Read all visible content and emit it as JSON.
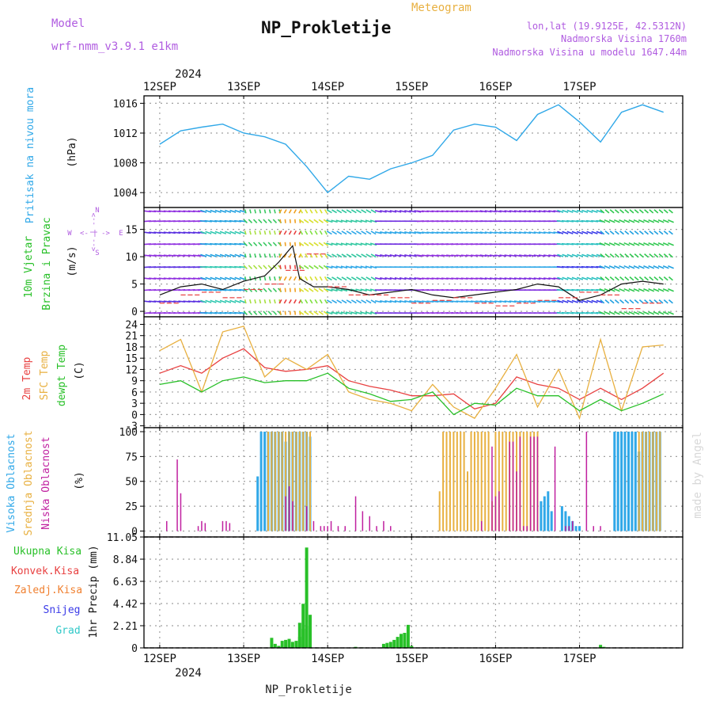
{
  "header": {
    "model_label": "Model",
    "model_name": "wrf-nmm_v3.9.1 e1km",
    "title": "NP_Prokletije",
    "subtitle": "Meteogram",
    "coords": "lon,lat (19.9125E, 42.5312N)",
    "altitude": "Nadmorska Visina 1760m",
    "model_altitude": "Nadmorska Visina u modelu 1647.44m",
    "footer": "NP_Prokletije",
    "watermark": "made by Angel",
    "year": "2024"
  },
  "colors": {
    "purple": "#b05ce0",
    "orange": "#e8b040",
    "cyan": "#30a8e8",
    "green": "#28c028",
    "red": "#e84040",
    "magenta": "#c020a0",
    "blue": "#3a3ae8",
    "teal": "#30c8c8"
  },
  "chart_data": [
    {
      "type": "line",
      "name": "pressure",
      "ylabel_color_label": "Pritisak na nivou mora",
      "unit": "(hPa)",
      "xticks": [
        "12SEP",
        "13SEP",
        "14SEP",
        "15SEP",
        "16SEP",
        "17SEP"
      ],
      "ylim": [
        1002,
        1017
      ],
      "yticks": [
        1004,
        1008,
        1012,
        1016
      ],
      "grid": true,
      "series": [
        {
          "x": [
            0,
            6,
            12,
            18,
            24,
            30,
            36,
            42,
            48,
            54,
            60,
            66,
            72,
            78,
            84,
            90,
            96,
            102,
            108,
            114,
            120,
            126,
            132,
            138,
            144
          ],
          "values": [
            1010.5,
            1012.3,
            1012.8,
            1013.2,
            1012.0,
            1011.5,
            1010.5,
            1007.5,
            1004.0,
            1006.2,
            1005.8,
            1007.2,
            1008.0,
            1009.0,
            1012.4,
            1013.2,
            1012.8,
            1011.0,
            1014.5,
            1015.8,
            1013.5,
            1010.8,
            1014.8,
            1015.8,
            1014.8
          ]
        }
      ]
    },
    {
      "type": "line",
      "name": "wind",
      "label1": "10m Vjetar",
      "label2": "Brzina i Pravac",
      "unit": "(m/s)",
      "compass": {
        "n": "N",
        "s": "S",
        "e": "E",
        "w": "W",
        "arrow_h": "<- | ->",
        "arrow_v": "<-- | -->"
      },
      "ylim": [
        -1,
        19
      ],
      "yticks": [
        0,
        5,
        10,
        15
      ],
      "grid": true,
      "series": [
        {
          "name": "speed",
          "x": [
            0,
            6,
            12,
            18,
            24,
            30,
            34,
            38,
            40,
            44,
            48,
            54,
            60,
            66,
            72,
            78,
            84,
            90,
            96,
            102,
            108,
            114,
            120,
            126,
            132,
            138,
            144
          ],
          "values": [
            3.0,
            4.5,
            5.0,
            4.0,
            5.5,
            6.5,
            9.0,
            12.0,
            6.0,
            4.5,
            4.5,
            4.0,
            3.0,
            3.5,
            4.0,
            3.0,
            2.5,
            3.0,
            3.5,
            4.0,
            5.0,
            4.5,
            2.0,
            3.0,
            5.0,
            5.5,
            5.0
          ]
        }
      ]
    },
    {
      "type": "line",
      "name": "temperature",
      "label1": "2m Temp",
      "label2": "SFC Temp",
      "label3": "dewpt Temp",
      "unit": "(C)",
      "ylim": [
        -3.5,
        26
      ],
      "yticks": [
        -3,
        0,
        3,
        6,
        9,
        12,
        15,
        18,
        21,
        24
      ],
      "grid": true,
      "series": [
        {
          "name": "2m Temp",
          "color": "red",
          "x": [
            0,
            6,
            12,
            18,
            24,
            30,
            36,
            42,
            48,
            54,
            60,
            66,
            72,
            78,
            84,
            90,
            96,
            102,
            108,
            114,
            120,
            126,
            132,
            138,
            144
          ],
          "values": [
            11.0,
            13.0,
            11.0,
            15.0,
            17.5,
            12.5,
            11.5,
            12.0,
            13.0,
            9.0,
            7.5,
            6.5,
            5.0,
            5.0,
            5.5,
            1.5,
            3.0,
            10.0,
            8.0,
            7.0,
            4.0,
            7.0,
            4.0,
            7.0,
            11.0
          ]
        },
        {
          "name": "SFC Temp",
          "color": "orange",
          "x": [
            0,
            6,
            12,
            18,
            24,
            30,
            36,
            42,
            48,
            54,
            60,
            66,
            72,
            78,
            84,
            90,
            96,
            102,
            108,
            114,
            120,
            126,
            132,
            138,
            144
          ],
          "values": [
            17.0,
            20.0,
            6.0,
            22.0,
            23.5,
            10.0,
            15.0,
            12.0,
            16.0,
            6.0,
            4.0,
            3.0,
            1.0,
            8.0,
            2.0,
            -1.0,
            7.0,
            16.0,
            2.0,
            12.0,
            -1.0,
            20.0,
            1.0,
            18.0,
            18.5
          ]
        },
        {
          "name": "dewpt Temp",
          "color": "green",
          "x": [
            0,
            6,
            12,
            18,
            24,
            30,
            36,
            42,
            48,
            54,
            60,
            66,
            72,
            78,
            84,
            90,
            96,
            102,
            108,
            114,
            120,
            126,
            132,
            138,
            144
          ],
          "values": [
            8.0,
            9.0,
            6.0,
            9.0,
            10.0,
            8.5,
            9.0,
            9.0,
            11.0,
            7.0,
            5.5,
            3.5,
            4.0,
            6.0,
            0.0,
            3.0,
            2.5,
            7.0,
            5.0,
            5.0,
            1.0,
            4.0,
            1.0,
            3.0,
            5.5
          ]
        }
      ]
    },
    {
      "type": "bar",
      "name": "clouds",
      "label1": "Visoka Oblacnost",
      "label2": "Srednja Oblacnost",
      "label3": "Niska Oblacnost",
      "unit": "(%)",
      "ylim": [
        0,
        100
      ],
      "yticks": [
        0,
        25,
        50,
        75,
        100
      ],
      "grid": true,
      "series": [
        {
          "name": "Visoka Oblacnost",
          "color": "cyan",
          "x": [
            28,
            29,
            30,
            31,
            32,
            33,
            34,
            35,
            36,
            37,
            38,
            39,
            40,
            41,
            42,
            43,
            109,
            110,
            111,
            112,
            115,
            116,
            117,
            118,
            119,
            120,
            130,
            131,
            132,
            133,
            134,
            135,
            136,
            137,
            138,
            139,
            140,
            141,
            142,
            143
          ],
          "values": [
            55,
            100,
            100,
            100,
            100,
            100,
            100,
            100,
            90,
            100,
            100,
            100,
            100,
            100,
            100,
            95,
            30,
            35,
            40,
            20,
            25,
            20,
            15,
            10,
            5,
            5,
            100,
            100,
            100,
            100,
            100,
            100,
            100,
            80,
            100,
            100,
            100,
            100,
            100,
            100
          ]
        },
        {
          "name": "Srednja Oblacnost",
          "color": "orange",
          "x": [
            31,
            32,
            33,
            34,
            35,
            36,
            37,
            38,
            39,
            40,
            41,
            42,
            43,
            80,
            81,
            82,
            83,
            84,
            85,
            86,
            87,
            88,
            89,
            90,
            91,
            92,
            93,
            94,
            95,
            96,
            97,
            98,
            99,
            100,
            101,
            102,
            103,
            104,
            105,
            106,
            107,
            108,
            137,
            138,
            139,
            140,
            141,
            142,
            143
          ],
          "values": [
            100,
            100,
            100,
            100,
            100,
            100,
            100,
            100,
            100,
            100,
            100,
            100,
            100,
            40,
            100,
            100,
            100,
            100,
            100,
            100,
            100,
            60,
            100,
            100,
            100,
            100,
            100,
            100,
            30,
            100,
            100,
            100,
            100,
            100,
            100,
            100,
            100,
            100,
            100,
            100,
            100,
            100,
            100,
            100,
            100,
            100,
            100,
            100,
            100
          ]
        },
        {
          "name": "Niska Oblacnost",
          "color": "magenta",
          "x": [
            2,
            5,
            6,
            11,
            12,
            13,
            18,
            19,
            20,
            36,
            37,
            38,
            42,
            44,
            46,
            47,
            48,
            49,
            51,
            53,
            56,
            58,
            60,
            62,
            64,
            66,
            92,
            95,
            96,
            97,
            100,
            101,
            102,
            103,
            104,
            105,
            106,
            107,
            108,
            113,
            116,
            117,
            118,
            122,
            124,
            126
          ],
          "values": [
            10,
            72,
            38,
            5,
            10,
            8,
            10,
            10,
            8,
            35,
            45,
            30,
            25,
            10,
            5,
            5,
            5,
            10,
            5,
            5,
            35,
            20,
            15,
            5,
            10,
            5,
            10,
            85,
            35,
            40,
            90,
            90,
            60,
            95,
            5,
            5,
            95,
            95,
            95,
            85,
            5,
            5,
            10,
            100,
            5,
            5
          ]
        }
      ]
    },
    {
      "type": "bar",
      "name": "precipitation",
      "labels": [
        "Ukupna Kisa",
        "Konvek.Kisa",
        "Zaledj.Kisa",
        "Snijeg",
        "Grad"
      ],
      "unit": "1hr Precip (mm)",
      "ylim": [
        0,
        11.05
      ],
      "yticks": [
        "0",
        "2.21",
        "4.42",
        "6.63",
        "8.84",
        "11.05"
      ],
      "grid": true,
      "series": [
        {
          "name": "Ukupna Kisa",
          "color": "green",
          "x": [
            32,
            33,
            34,
            35,
            36,
            37,
            38,
            39,
            40,
            41,
            42,
            56,
            58,
            64,
            65,
            66,
            67,
            68,
            69,
            70,
            71,
            72,
            126,
            127
          ],
          "values": [
            1.0,
            0.4,
            0.2,
            0.7,
            0.8,
            0.9,
            0.6,
            0.7,
            1.1,
            1.9,
            2.2,
            0.1,
            0.05,
            0.4,
            0.5,
            0.6,
            0.8,
            1.1,
            1.4,
            1.5,
            2.3,
            0.2,
            0.3,
            0.1
          ]
        }
      ]
    }
  ],
  "spike": {
    "times": [
      40,
      41,
      42,
      43
    ],
    "values": [
      2.5,
      4.4,
      10.0,
      3.3
    ]
  }
}
